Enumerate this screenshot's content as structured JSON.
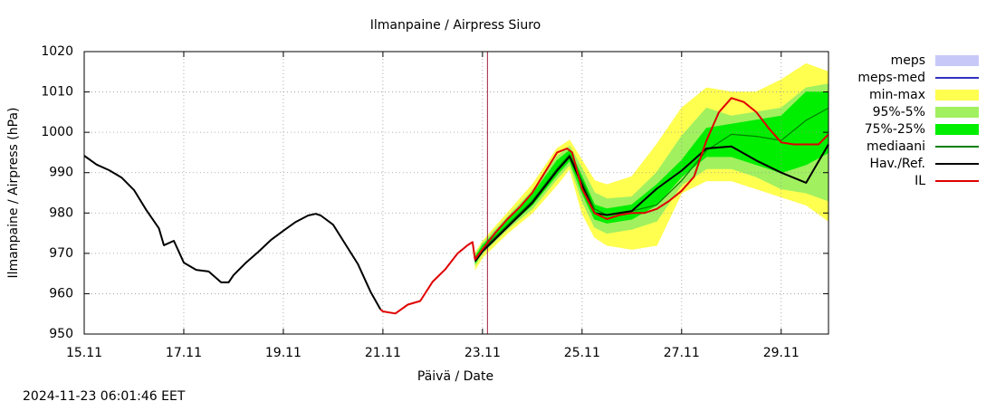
{
  "chart_data": {
    "type": "line",
    "title": "Ilmanpaine / Airpress Siuro",
    "xlabel": "Päivä / Date",
    "ylabel": "Ilmanpaine / Airpress (hPa)",
    "timestamp": "2024-11-23 06:01:46 EET",
    "xlim": [
      0,
      14.95
    ],
    "ylim": [
      950,
      1020
    ],
    "xticks": [
      {
        "value": 0,
        "label": "15.11"
      },
      {
        "value": 2,
        "label": "17.11"
      },
      {
        "value": 4,
        "label": "19.11"
      },
      {
        "value": 6,
        "label": "21.11"
      },
      {
        "value": 8,
        "label": "23.11"
      },
      {
        "value": 10,
        "label": "25.11"
      },
      {
        "value": 12,
        "label": "27.11"
      },
      {
        "value": 14,
        "label": "29.11"
      }
    ],
    "yticks": [
      950,
      960,
      970,
      980,
      990,
      1000,
      1010,
      1020
    ],
    "grid": true,
    "forecast_start": 8.1,
    "forecast_color": "#a02040",
    "series": [
      {
        "name": "meps",
        "kind": "band",
        "color": "#c8c8f8"
      },
      {
        "name": "meps-med",
        "kind": "line",
        "color": "#3030c0"
      },
      {
        "name": "min-max",
        "kind": "band",
        "color": "#ffff50",
        "x": [
          7.85,
          8.0,
          8.5,
          9.0,
          9.5,
          9.75,
          10.0,
          10.25,
          10.5,
          11.0,
          11.5,
          12.0,
          12.5,
          13.0,
          13.5,
          14.0,
          14.5,
          14.95
        ],
        "lower": [
          966,
          969,
          975,
          980,
          987,
          991,
          980,
          974,
          972,
          971,
          972,
          985,
          988,
          988,
          986,
          984,
          982,
          978
        ],
        "upper": [
          970,
          973,
          980,
          987,
          996,
          998,
          993,
          988,
          987,
          989,
          997,
          1006,
          1011,
          1010,
          1010,
          1013,
          1017,
          1015
        ]
      },
      {
        "name": "95%-5%",
        "kind": "band",
        "color": "#a0f060",
        "x": [
          7.85,
          8.0,
          8.5,
          9.0,
          9.5,
          9.75,
          10.0,
          10.25,
          10.5,
          11.0,
          11.5,
          12.0,
          12.5,
          13.0,
          13.5,
          14.0,
          14.5,
          14.95
        ],
        "lower": [
          967,
          970,
          976,
          981,
          988.5,
          992,
          983,
          976.5,
          975,
          976,
          978,
          987,
          991,
          991,
          989,
          986,
          985,
          983
        ],
        "upper": [
          969.5,
          972.5,
          979,
          985.5,
          994,
          996.5,
          991,
          985,
          983.5,
          984,
          990,
          999,
          1006,
          1004,
          1005,
          1006,
          1011,
          1012
        ]
      },
      {
        "name": "75%-25%",
        "kind": "band",
        "color": "#00ee00",
        "x": [
          7.85,
          8.0,
          8.5,
          9.0,
          9.5,
          9.75,
          10.0,
          10.25,
          10.5,
          11.0,
          11.5,
          12.0,
          12.5,
          13.0,
          13.5,
          14.0,
          14.5,
          14.95
        ],
        "lower": [
          967.5,
          970.5,
          976.5,
          982,
          989.5,
          993,
          985,
          978.5,
          977.5,
          978.5,
          982,
          989,
          994,
          994,
          992,
          990,
          992,
          995
        ],
        "upper": [
          969,
          972,
          978,
          984.5,
          993,
          995.5,
          989,
          982,
          981,
          982,
          987,
          993,
          1001,
          1002,
          1003,
          1004,
          1010,
          1010
        ]
      },
      {
        "name": "mediaani",
        "kind": "line",
        "color": "#008000",
        "x": [
          7.85,
          8.0,
          8.5,
          9.0,
          9.5,
          9.75,
          10.0,
          10.25,
          10.5,
          11.0,
          11.5,
          12.0,
          12.5,
          13.0,
          13.5,
          14.0,
          14.5,
          14.95
        ],
        "values": [
          968.5,
          971,
          977,
          983,
          991,
          994.5,
          988,
          981,
          979.5,
          980.5,
          982,
          988,
          995.5,
          999.5,
          999,
          998,
          1003,
          1006
        ]
      },
      {
        "name": "Hav./Ref.",
        "kind": "line",
        "color": "#000000",
        "x": [
          0,
          0.25,
          0.5,
          0.75,
          1.0,
          1.25,
          1.5,
          1.6,
          1.8,
          2.0,
          2.25,
          2.5,
          2.75,
          2.9,
          3.0,
          3.25,
          3.5,
          3.75,
          4.0,
          4.25,
          4.5,
          4.65,
          4.75,
          5.0,
          5.25,
          5.5,
          5.75,
          5.95,
          6.5,
          7.85,
          8.0,
          8.5,
          9.0,
          9.5,
          9.75,
          10.0,
          10.25,
          10.5,
          11.0,
          11.5,
          12.0,
          12.5,
          13.0,
          13.5,
          14.0,
          14.5,
          14.95
        ],
        "values": [
          994.2,
          992,
          990.6,
          988.8,
          985.7,
          980.7,
          976.2,
          972,
          973.1,
          967.7,
          965.9,
          965.5,
          962.8,
          962.8,
          964.6,
          967.7,
          970.4,
          973.3,
          975.6,
          977.8,
          979.4,
          979.8,
          979.4,
          977.1,
          972.2,
          967.3,
          960.5,
          956.1,
          null,
          968,
          970.5,
          976.5,
          982.5,
          990.5,
          994,
          987,
          980,
          979.5,
          980.5,
          986,
          990.5,
          996,
          996.5,
          993,
          990,
          987.5,
          997
        ]
      },
      {
        "name": "IL",
        "kind": "line",
        "color": "#e00000",
        "x": [
          5.95,
          6.0,
          6.25,
          6.5,
          6.75,
          7.0,
          7.25,
          7.5,
          7.7,
          7.8,
          7.85,
          8.0,
          8.25,
          8.5,
          8.75,
          9.0,
          9.25,
          9.5,
          9.7,
          9.8,
          10.0,
          10.25,
          10.5,
          10.75,
          11.0,
          11.25,
          11.5,
          11.75,
          12.0,
          12.25,
          12.5,
          12.75,
          13.0,
          13.25,
          13.5,
          13.75,
          14.0,
          14.25,
          14.5,
          14.75,
          14.95
        ],
        "values": [
          956.1,
          955.6,
          955.1,
          957.3,
          958.2,
          963,
          966,
          970,
          972,
          972.8,
          968.5,
          971,
          975,
          978.5,
          981.5,
          985,
          990,
          995,
          996,
          995,
          986,
          980,
          978.5,
          979.5,
          980,
          980,
          981,
          983,
          985.5,
          989,
          998,
          1005,
          1008.5,
          1007.5,
          1005,
          1001,
          997.5,
          997,
          997,
          997,
          999.5
        ]
      }
    ]
  }
}
